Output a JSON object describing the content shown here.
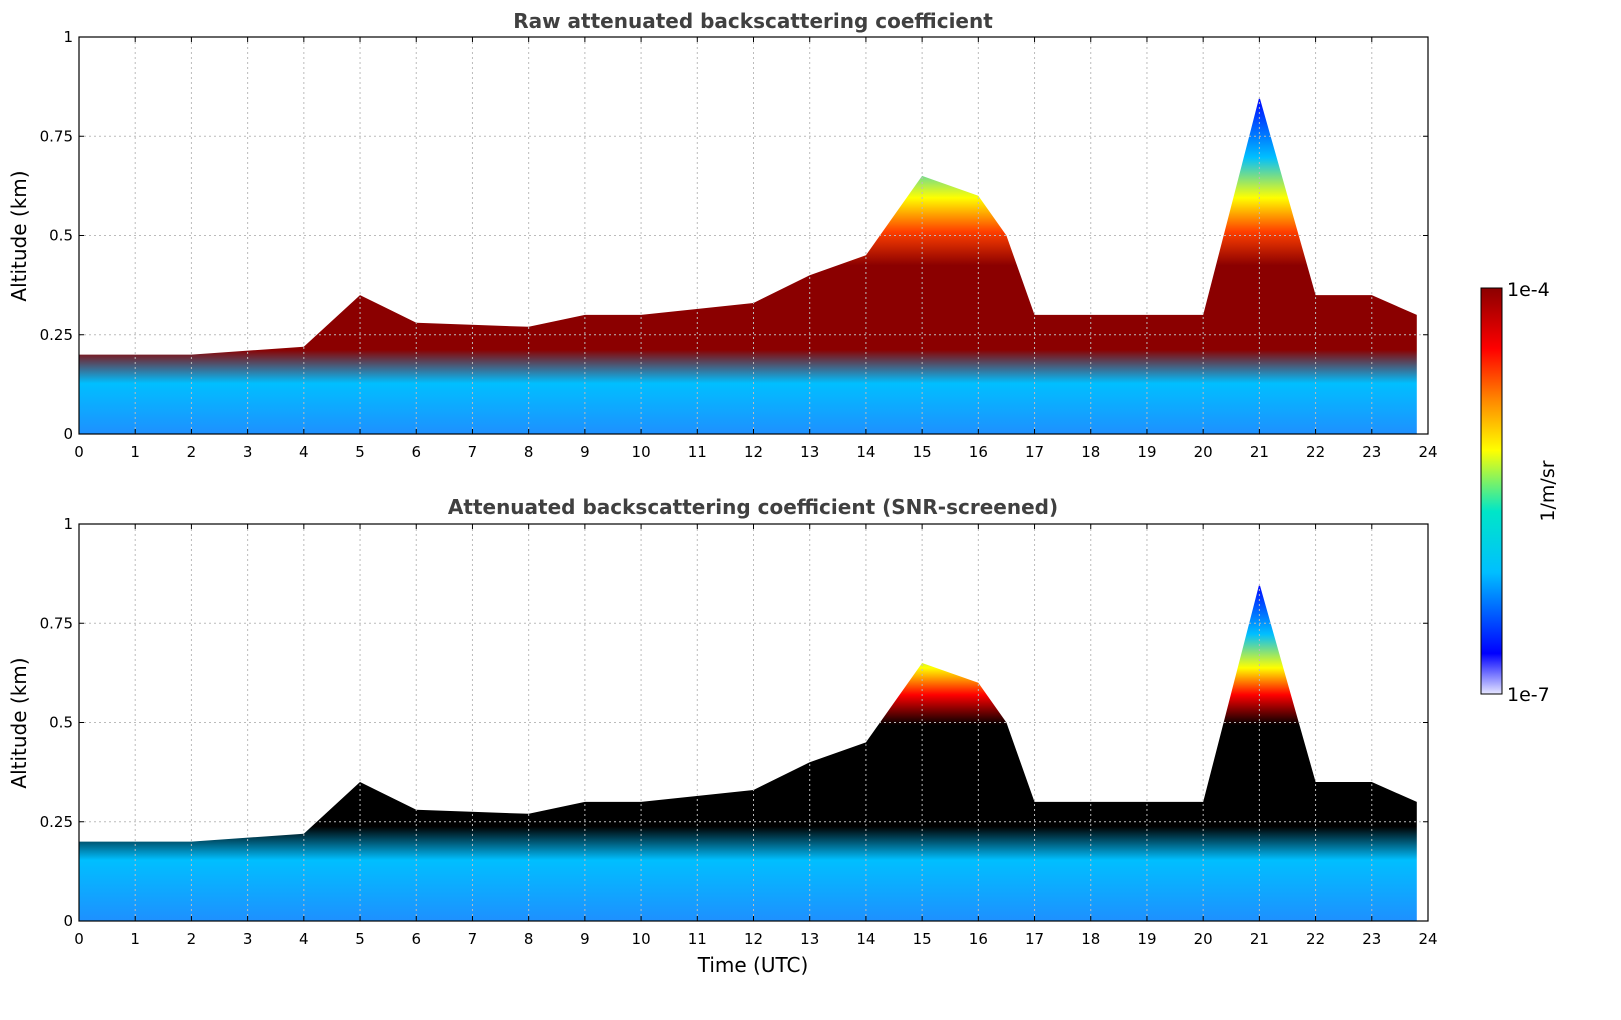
{
  "chart_data": {
    "type": "heatmap",
    "panels": [
      {
        "title": "Raw attenuated backscattering coefficient",
        "ylabel": "Altitude (km)",
        "xlabel": "",
        "xlim": [
          0,
          24
        ],
        "ylim": [
          0,
          1
        ],
        "x_ticks": [
          "0",
          "1",
          "2",
          "3",
          "4",
          "5",
          "6",
          "7",
          "8",
          "9",
          "10",
          "11",
          "12",
          "13",
          "14",
          "15",
          "16",
          "17",
          "18",
          "19",
          "20",
          "21",
          "22",
          "23",
          "24"
        ],
        "y_ticks": [
          "0",
          "0.25",
          "0.5",
          "0.75",
          "1"
        ],
        "grid": true,
        "boundary_layer_top_km": [
          [
            0,
            0.2
          ],
          [
            2,
            0.2
          ],
          [
            4,
            0.22
          ],
          [
            5,
            0.35
          ],
          [
            6,
            0.28
          ],
          [
            8,
            0.27
          ],
          [
            9,
            0.3
          ],
          [
            10,
            0.3
          ],
          [
            12,
            0.33
          ],
          [
            13,
            0.4
          ],
          [
            14,
            0.45
          ],
          [
            15,
            0.65
          ],
          [
            16,
            0.6
          ],
          [
            16.5,
            0.5
          ],
          [
            17,
            0.3
          ],
          [
            18,
            0.3
          ],
          [
            19,
            0.3
          ],
          [
            20,
            0.3
          ],
          [
            21,
            0.85
          ],
          [
            22,
            0.35
          ],
          [
            23,
            0.35
          ],
          [
            23.8,
            0.3
          ]
        ]
      },
      {
        "title": "Attenuated backscattering coefficient (SNR-screened)",
        "ylabel": "Altitude (km)",
        "xlabel": "Time (UTC)",
        "xlim": [
          0,
          24
        ],
        "ylim": [
          0,
          1
        ],
        "x_ticks": [
          "0",
          "1",
          "2",
          "3",
          "4",
          "5",
          "6",
          "7",
          "8",
          "9",
          "10",
          "11",
          "12",
          "13",
          "14",
          "15",
          "16",
          "17",
          "18",
          "19",
          "20",
          "21",
          "22",
          "23",
          "24"
        ],
        "y_ticks": [
          "0",
          "0.25",
          "0.5",
          "0.75",
          "1"
        ],
        "grid": true,
        "boundary_layer_top_km": [
          [
            0,
            0.2
          ],
          [
            2,
            0.2
          ],
          [
            4,
            0.22
          ],
          [
            5,
            0.35
          ],
          [
            6,
            0.28
          ],
          [
            8,
            0.27
          ],
          [
            9,
            0.3
          ],
          [
            10,
            0.3
          ],
          [
            12,
            0.33
          ],
          [
            13,
            0.4
          ],
          [
            14,
            0.45
          ],
          [
            15,
            0.65
          ],
          [
            16,
            0.6
          ],
          [
            16.5,
            0.5
          ],
          [
            17,
            0.3
          ],
          [
            18,
            0.3
          ],
          [
            19,
            0.3
          ],
          [
            20,
            0.3
          ],
          [
            21,
            0.85
          ],
          [
            22,
            0.35
          ],
          [
            23,
            0.35
          ],
          [
            23.8,
            0.3
          ]
        ]
      }
    ],
    "colorbar": {
      "label": "1/m/sr",
      "max_label": "1e-4",
      "min_label": "1e-7",
      "scale": "log",
      "colormap": [
        "#e6e6ff",
        "#0000ff",
        "#00bfff",
        "#00e6c8",
        "#ffff00",
        "#ff8c00",
        "#ff0000",
        "#8b0000"
      ]
    },
    "data_end_hour": 23.8
  }
}
